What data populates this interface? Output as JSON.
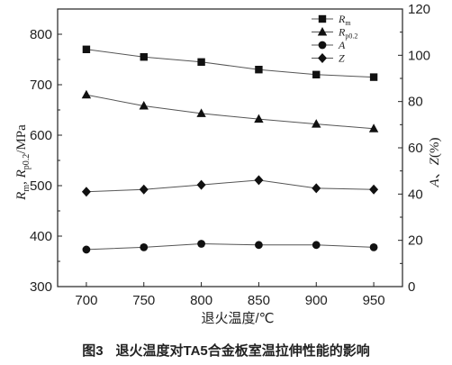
{
  "chart_data": {
    "type": "line",
    "x": [
      700,
      750,
      800,
      850,
      900,
      950
    ],
    "xlabel": "退火温度/℃",
    "xlim": [
      675,
      975
    ],
    "ylabel_left": {
      "R": "R",
      "sub_m": "m",
      "sep": ", ",
      "Rp": "R",
      "sub_p": "p0.2",
      "unit": "/MPa"
    },
    "ylim_left": [
      300,
      850
    ],
    "yticks_left": [
      300,
      400,
      500,
      600,
      700,
      800
    ],
    "ylabel_right": {
      "A": "A",
      "sep": "、",
      "Z": "Z",
      "unit": "(%)"
    },
    "ylim_right": [
      0,
      120
    ],
    "yticks_right": [
      0,
      20,
      40,
      60,
      80,
      100,
      120
    ],
    "series": [
      {
        "name": "Rm",
        "legend_main": "R",
        "legend_sub": "m",
        "axis": "left",
        "marker": "square",
        "values": [
          770,
          755,
          745,
          730,
          720,
          715
        ]
      },
      {
        "name": "Rp0.2",
        "legend_main": "R",
        "legend_sub": "p0.2",
        "axis": "left",
        "marker": "triangle",
        "values": [
          680,
          658,
          643,
          632,
          622,
          613
        ]
      },
      {
        "name": "A",
        "legend_main": "A",
        "legend_sub": "",
        "axis": "right",
        "marker": "circle",
        "values": [
          16,
          17,
          18.5,
          18,
          18,
          17
        ]
      },
      {
        "name": "Z",
        "legend_main": "Z",
        "legend_sub": "",
        "axis": "right",
        "marker": "diamond",
        "values": [
          41,
          42,
          44,
          46,
          42.5,
          42
        ]
      }
    ],
    "grid": false,
    "legend_position": "top-right",
    "colors": {
      "line": "#555555",
      "marker": "#111111",
      "axis": "#222222"
    }
  },
  "caption": {
    "label": "图3",
    "text": "退火温度对TA5合金板室温拉伸性能的影响"
  }
}
